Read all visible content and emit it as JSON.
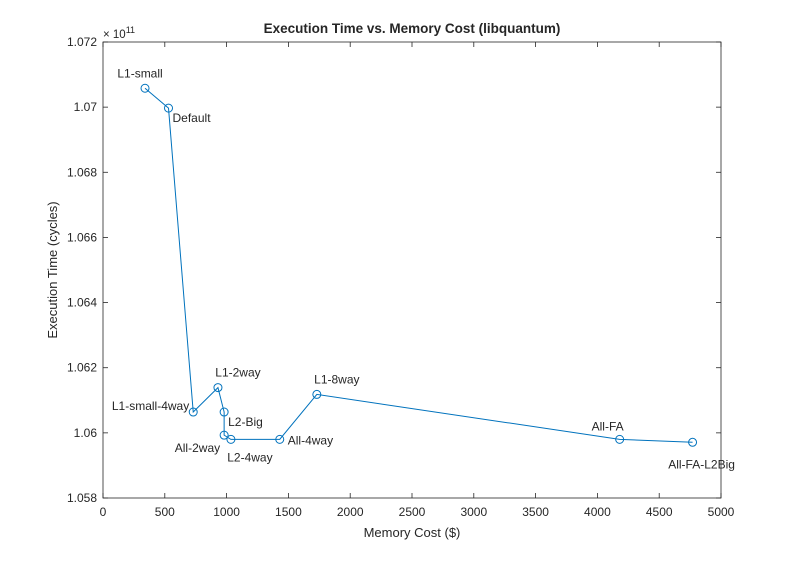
{
  "chart_data": {
    "type": "line",
    "title": "Execution Time vs. Memory Cost (libquantum)",
    "xlabel": "Memory Cost ($)",
    "ylabel": "Execution Time (cycles)",
    "y_exponent_base": "× 10",
    "y_exponent_power": "11",
    "xlim": [
      0,
      5000
    ],
    "ylim": [
      1.058,
      1.072
    ],
    "xticks": [
      0,
      500,
      1000,
      1500,
      2000,
      2500,
      3000,
      3500,
      4000,
      4500,
      5000
    ],
    "yticks": [
      1.058,
      1.06,
      1.062,
      1.064,
      1.066,
      1.068,
      1.07,
      1.072
    ],
    "ytick_labels": [
      "1.058",
      "1.06",
      "1.062",
      "1.064",
      "1.066",
      "1.068",
      "1.07",
      "1.072"
    ],
    "grid": false,
    "line_color": "#0072BD",
    "marker": "circle",
    "points": [
      {
        "label": "L1-small",
        "x": 340,
        "y": 1.07058,
        "label_pos": "above"
      },
      {
        "label": "Default",
        "x": 530,
        "y": 1.06997,
        "label_pos": "right-below"
      },
      {
        "label": "L1-small-4way",
        "x": 730,
        "y": 1.06064,
        "label_pos": "left"
      },
      {
        "label": "L1-2way",
        "x": 930,
        "y": 1.06139,
        "label_pos": "above-right"
      },
      {
        "label": "L2-Big",
        "x": 980,
        "y": 1.06064,
        "label_pos": "right-below"
      },
      {
        "label": "All-2way",
        "x": 980,
        "y": 1.05993,
        "label_pos": "below-left"
      },
      {
        "label": "L2-4way",
        "x": 1035,
        "y": 1.0598,
        "label_pos": "below"
      },
      {
        "label": "All-4way",
        "x": 1430,
        "y": 1.0598,
        "label_pos": "right"
      },
      {
        "label": "L1-8way",
        "x": 1730,
        "y": 1.06118,
        "label_pos": "above-right"
      },
      {
        "label": "All-FA",
        "x": 4180,
        "y": 1.0598,
        "label_pos": "above-left"
      },
      {
        "label": "All-FA-L2Big",
        "x": 4770,
        "y": 1.05971,
        "label_pos": "below"
      }
    ]
  }
}
